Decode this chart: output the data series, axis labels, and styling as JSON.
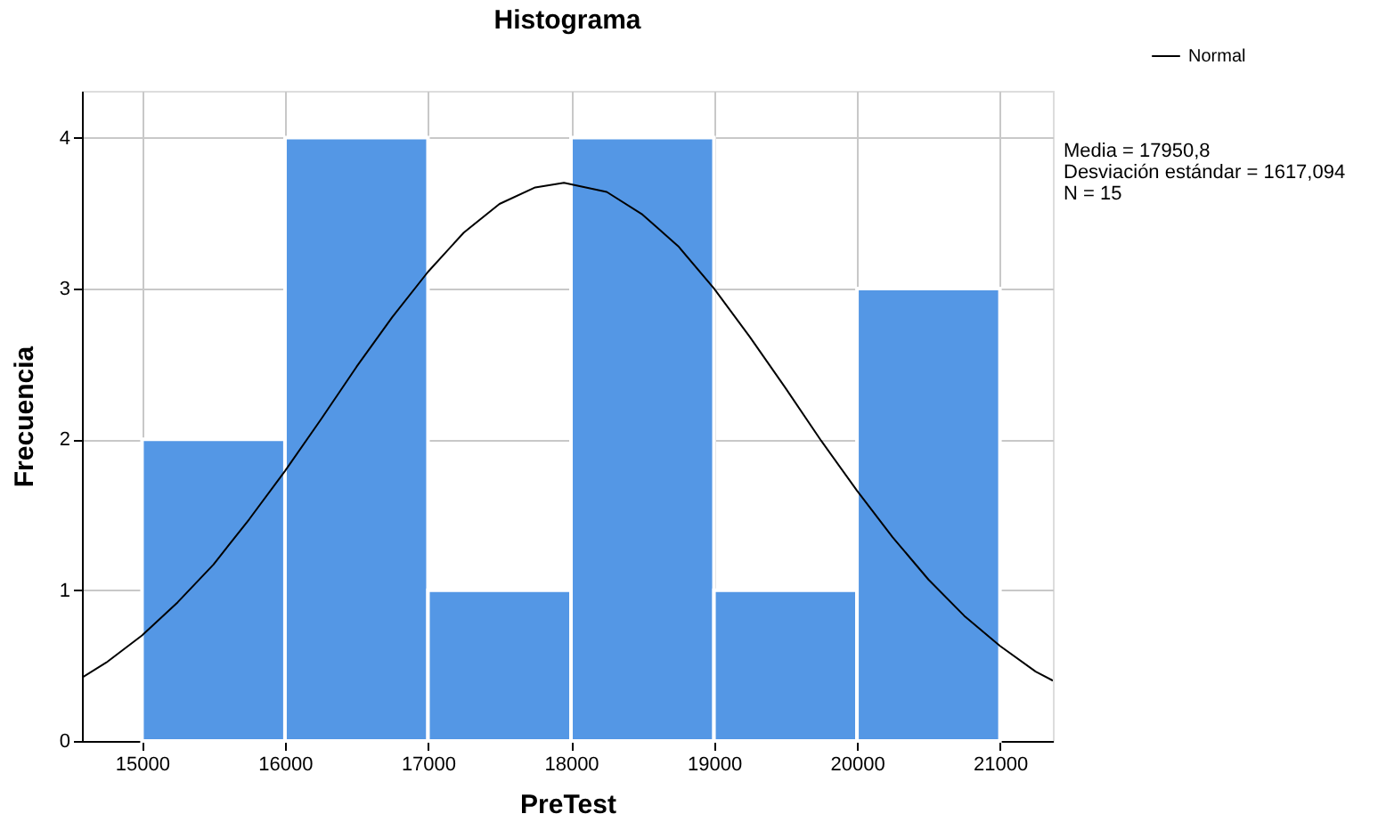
{
  "chart_data": {
    "type": "histogram",
    "title": "Histograma",
    "xlabel": "PreTest",
    "ylabel": "Frecuencia",
    "bins": [
      15000,
      16000,
      17000,
      18000,
      19000,
      20000,
      21000
    ],
    "values": [
      2,
      4,
      1,
      4,
      1,
      3
    ],
    "color": "#5497e5",
    "series": [
      {
        "name": "Normal",
        "type": "line",
        "color": "#000000",
        "x": [
          14580,
          14750,
          15000,
          15250,
          15500,
          15750,
          16000,
          16250,
          16500,
          16750,
          17000,
          17250,
          17500,
          17750,
          17950.8,
          18250,
          18500,
          18750,
          19000,
          19250,
          19500,
          19750,
          20000,
          20250,
          20500,
          20750,
          21000,
          21250,
          21370
        ],
        "values": [
          0.42,
          0.52,
          0.7,
          0.92,
          1.17,
          1.47,
          1.79,
          2.13,
          2.48,
          2.81,
          3.11,
          3.37,
          3.56,
          3.67,
          3.7,
          3.64,
          3.49,
          3.28,
          3.0,
          2.68,
          2.34,
          1.99,
          1.66,
          1.35,
          1.07,
          0.83,
          0.63,
          0.46,
          0.4
        ]
      }
    ],
    "xlim": [
      14580,
      21370
    ],
    "ylim": [
      0,
      4.31
    ],
    "xticks": [
      15000,
      16000,
      17000,
      18000,
      19000,
      20000,
      21000
    ],
    "yticks": [
      0,
      1,
      2,
      3,
      4
    ],
    "grid": true,
    "legend": "top right",
    "line_style": "solid",
    "marker": "none",
    "annotations": [
      "Media = 17950,8",
      "Desviación estándar = 1617,094",
      "N = 15"
    ]
  }
}
